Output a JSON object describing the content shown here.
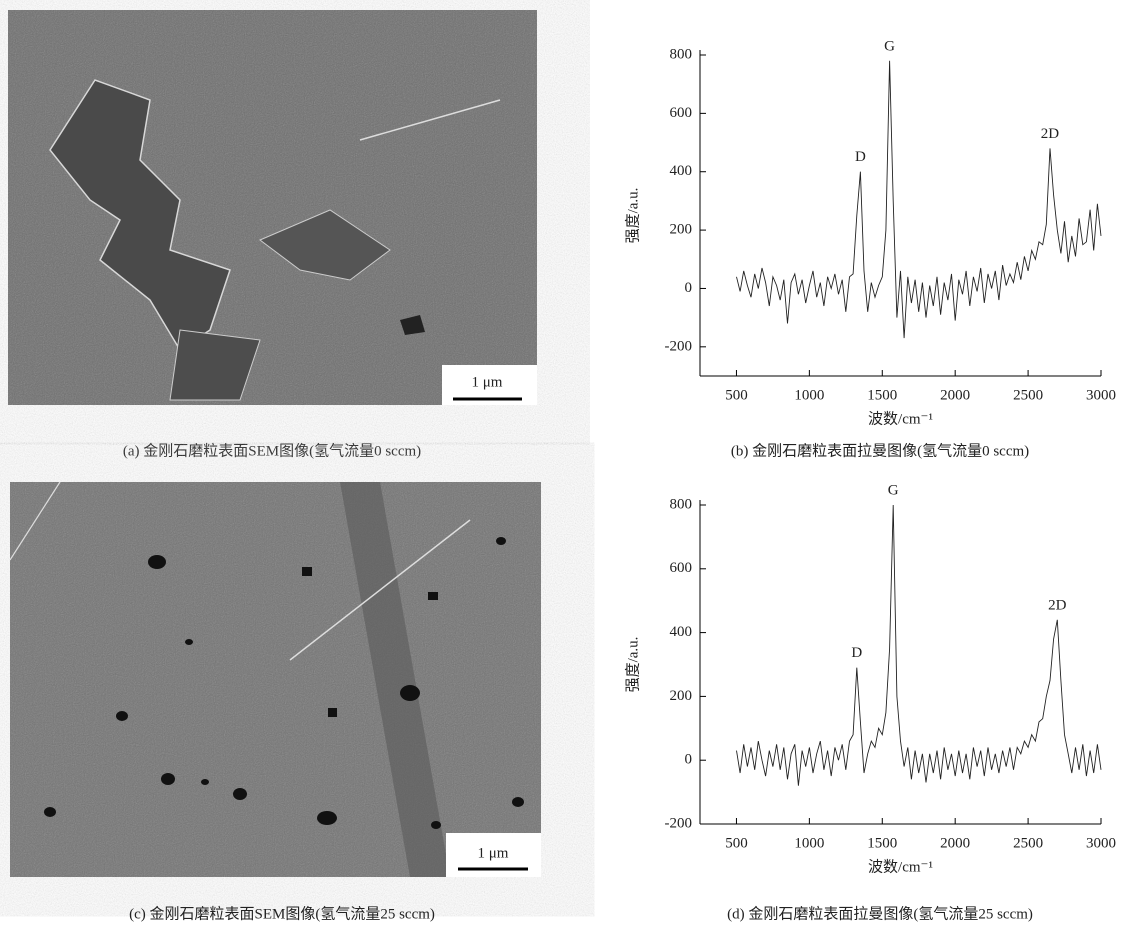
{
  "images": [
    {
      "scale_bar": "1 μm",
      "caption": "(a) 金刚石磨粒表面SEM图像(氢气流量0 sccm)"
    },
    {
      "scale_bar": "1 μm",
      "caption": "(c) 金刚石磨粒表面SEM图像(氢气流量25 sccm)"
    }
  ],
  "chart_data": [
    {
      "type": "line",
      "caption": "(b) 金刚石磨粒表面拉曼图像(氢气流量0 sccm)",
      "xlabel": "波数/cm⁻¹",
      "ylabel": "强度/a.u.",
      "color": "#222222",
      "xlim": [
        250,
        3000
      ],
      "ylim": [
        -300,
        800
      ],
      "xticks": [
        500,
        1000,
        1500,
        2000,
        2500,
        3000
      ],
      "yticks": [
        -200,
        0,
        200,
        400,
        600,
        800
      ],
      "annotations": [
        {
          "text": "D",
          "x": 1350
        },
        {
          "text": "G",
          "x": 1550
        },
        {
          "text": "2D",
          "x": 2650
        }
      ],
      "x": [
        500,
        525,
        550,
        575,
        600,
        625,
        650,
        675,
        700,
        725,
        750,
        775,
        800,
        825,
        850,
        875,
        900,
        925,
        950,
        975,
        1000,
        1025,
        1050,
        1075,
        1100,
        1125,
        1150,
        1175,
        1200,
        1225,
        1250,
        1275,
        1300,
        1325,
        1350,
        1375,
        1400,
        1425,
        1450,
        1475,
        1500,
        1525,
        1550,
        1575,
        1600,
        1625,
        1650,
        1675,
        1700,
        1725,
        1750,
        1775,
        1800,
        1825,
        1850,
        1875,
        1900,
        1925,
        1950,
        1975,
        2000,
        2025,
        2050,
        2075,
        2100,
        2125,
        2150,
        2175,
        2200,
        2225,
        2250,
        2275,
        2300,
        2325,
        2350,
        2375,
        2400,
        2425,
        2450,
        2475,
        2500,
        2525,
        2550,
        2575,
        2600,
        2625,
        2650,
        2675,
        2700,
        2725,
        2750,
        2775,
        2800,
        2825,
        2850,
        2875,
        2900,
        2925,
        2950,
        2975,
        3000
      ],
      "values": [
        40,
        -10,
        60,
        10,
        -30,
        50,
        0,
        70,
        20,
        -60,
        40,
        10,
        -40,
        30,
        -120,
        20,
        50,
        -20,
        30,
        -50,
        10,
        60,
        -30,
        20,
        -60,
        40,
        0,
        50,
        -20,
        30,
        -80,
        40,
        50,
        250,
        400,
        60,
        -80,
        20,
        -30,
        10,
        40,
        200,
        780,
        300,
        -100,
        60,
        -170,
        40,
        -50,
        30,
        -80,
        20,
        -100,
        10,
        -60,
        40,
        -90,
        20,
        -40,
        50,
        -110,
        30,
        -20,
        60,
        -60,
        40,
        -10,
        70,
        -50,
        50,
        0,
        60,
        -40,
        80,
        10,
        50,
        20,
        90,
        30,
        110,
        60,
        130,
        100,
        160,
        150,
        220,
        480,
        320,
        200,
        120,
        230,
        90,
        180,
        110,
        240,
        150,
        160,
        270,
        130,
        290,
        180
      ]
    },
    {
      "type": "line",
      "caption": "(d) 金刚石磨粒表面拉曼图像(氢气流量25 sccm)",
      "xlabel": "波数/cm⁻¹",
      "ylabel": "强度/a.u.",
      "color": "#222222",
      "xlim": [
        250,
        3000
      ],
      "ylim": [
        -200,
        800
      ],
      "xticks": [
        500,
        1000,
        1500,
        2000,
        2500,
        3000
      ],
      "yticks": [
        -200,
        0,
        200,
        400,
        600,
        800
      ],
      "annotations": [
        {
          "text": "D",
          "x": 1325
        },
        {
          "text": "G",
          "x": 1575
        },
        {
          "text": "2D",
          "x": 2700
        }
      ],
      "x": [
        500,
        525,
        550,
        575,
        600,
        625,
        650,
        675,
        700,
        725,
        750,
        775,
        800,
        825,
        850,
        875,
        900,
        925,
        950,
        975,
        1000,
        1025,
        1050,
        1075,
        1100,
        1125,
        1150,
        1175,
        1200,
        1225,
        1250,
        1275,
        1300,
        1325,
        1350,
        1375,
        1400,
        1425,
        1450,
        1475,
        1500,
        1525,
        1550,
        1575,
        1600,
        1625,
        1650,
        1675,
        1700,
        1725,
        1750,
        1775,
        1800,
        1825,
        1850,
        1875,
        1900,
        1925,
        1950,
        1975,
        2000,
        2025,
        2050,
        2075,
        2100,
        2125,
        2150,
        2175,
        2200,
        2225,
        2250,
        2275,
        2300,
        2325,
        2350,
        2375,
        2400,
        2425,
        2450,
        2475,
        2500,
        2525,
        2550,
        2575,
        2600,
        2625,
        2650,
        2675,
        2700,
        2725,
        2750,
        2775,
        2800,
        2825,
        2850,
        2875,
        2900,
        2925,
        2950,
        2975,
        3000
      ],
      "values": [
        30,
        -40,
        50,
        -20,
        40,
        -30,
        60,
        0,
        -50,
        30,
        -20,
        50,
        -30,
        40,
        -60,
        20,
        50,
        -80,
        30,
        -20,
        40,
        -40,
        20,
        60,
        -30,
        30,
        -50,
        40,
        0,
        50,
        -30,
        60,
        80,
        290,
        120,
        -40,
        20,
        60,
        40,
        100,
        80,
        150,
        350,
        800,
        200,
        60,
        -20,
        40,
        -60,
        30,
        -40,
        20,
        -70,
        20,
        -40,
        30,
        -60,
        40,
        -30,
        20,
        -50,
        30,
        -40,
        20,
        -60,
        40,
        -20,
        30,
        -50,
        40,
        -30,
        20,
        -40,
        30,
        -20,
        40,
        -30,
        40,
        20,
        60,
        40,
        80,
        60,
        120,
        130,
        200,
        250,
        380,
        440,
        250,
        80,
        20,
        -40,
        40,
        -30,
        50,
        -50,
        30,
        -40,
        50,
        -30
      ]
    }
  ]
}
